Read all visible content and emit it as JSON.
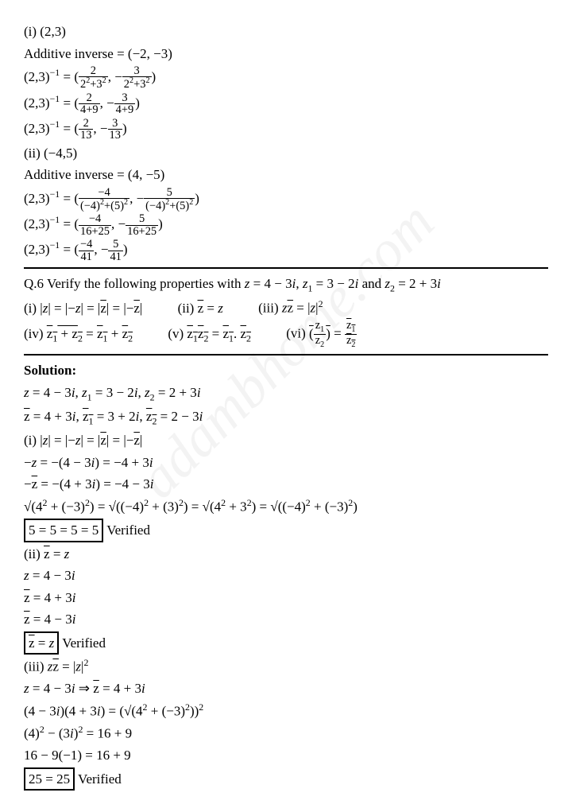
{
  "section1": {
    "i_label": "(i) (2,3)",
    "addinv1": "Additive inverse = (−2, −3)",
    "ii_label": "(ii) (−4,5)",
    "addinv2": "Additive inverse = (4, −5)"
  },
  "q6": {
    "header": "Q.6 Verify the following properties with z = 4 − 3i, z₁ = 3 − 2i and z₂ = 2 + 3i"
  },
  "solution": {
    "label": "Solution:",
    "given": "z = 4 − 3i, z₁ = 3 − 2i, z₂ = 2 + 3i",
    "verified": "Verified"
  },
  "watermark": "adambhome.com"
}
